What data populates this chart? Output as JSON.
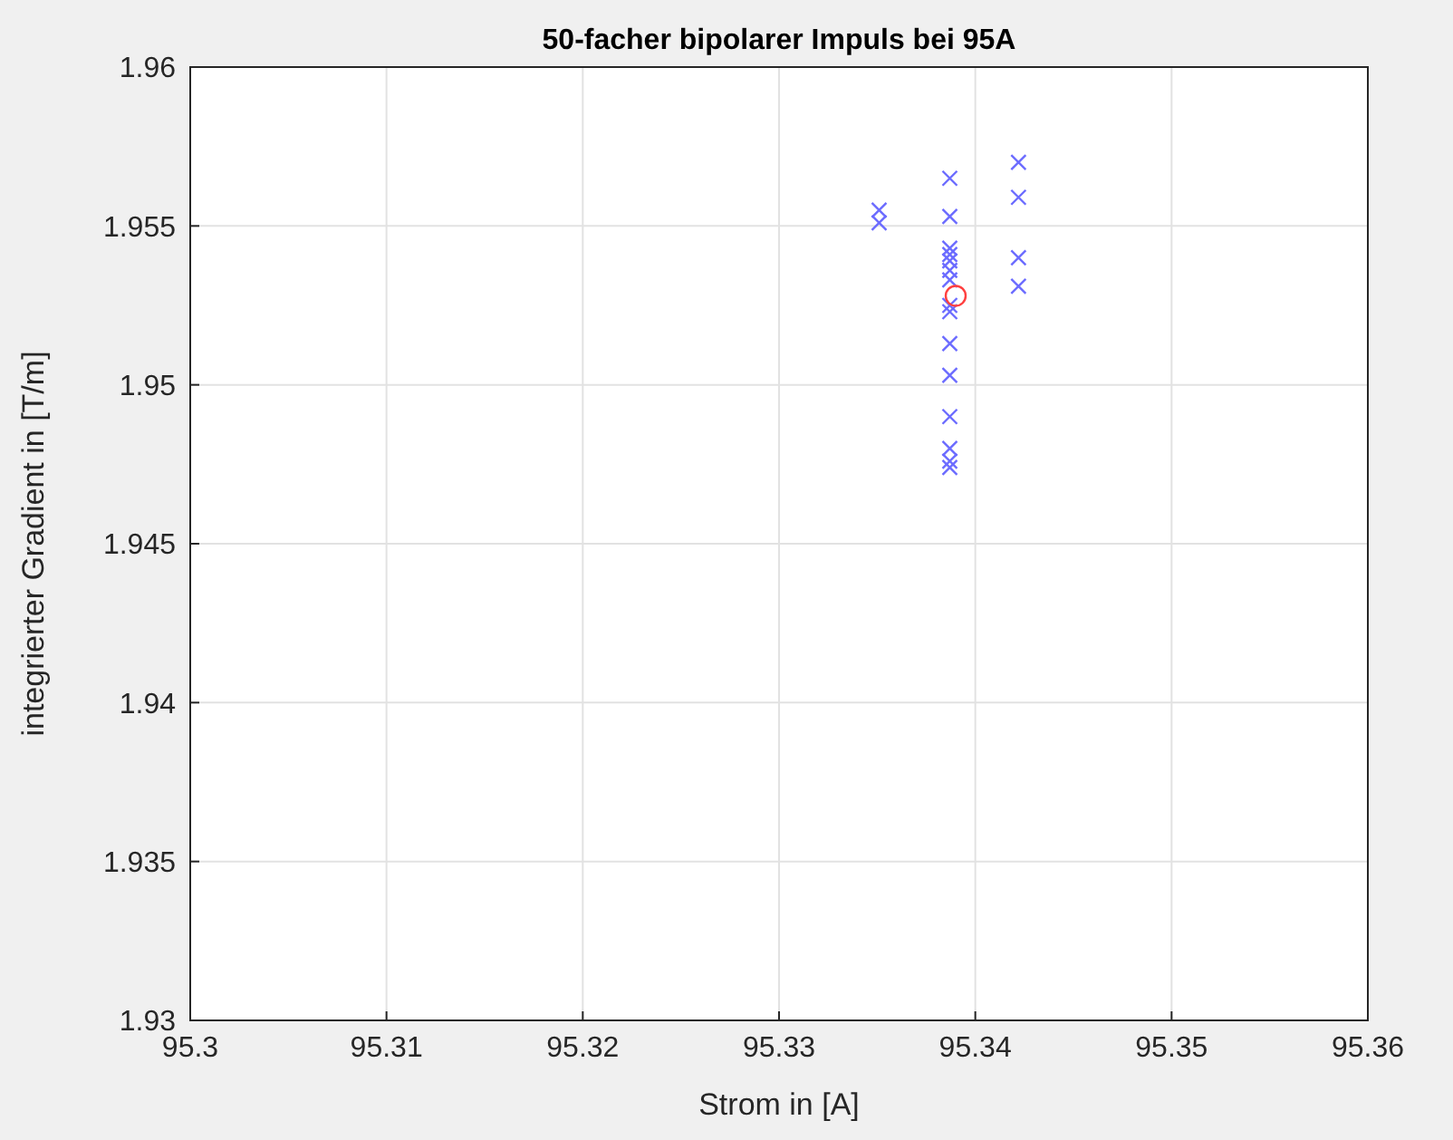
{
  "chart_data": {
    "type": "scatter",
    "title": "50-facher bipolarer Impuls bei 95A",
    "xlabel": "Strom in [A]",
    "ylabel": "integrierter Gradient in [T/m]",
    "xlim": [
      95.3,
      95.36
    ],
    "xticks": [
      95.3,
      95.31,
      95.32,
      95.33,
      95.34,
      95.35,
      95.36
    ],
    "ylim": [
      1.93,
      1.96
    ],
    "yticks": [
      1.93,
      1.935,
      1.94,
      1.945,
      1.95,
      1.955,
      1.96
    ],
    "grid": true,
    "series": [
      {
        "color": "#6b6bff",
        "marker": "cross",
        "x": [
          95.3351,
          95.3351,
          95.3387,
          95.3387,
          95.3387,
          95.3387,
          95.3387,
          95.3387,
          95.3387,
          95.3387,
          95.3387,
          95.3387,
          95.3387,
          95.3387,
          95.3387,
          95.3387,
          95.3387,
          95.3422,
          95.3422,
          95.3422,
          95.3422
        ],
        "values": [
          1.9555,
          1.9551,
          1.9565,
          1.9553,
          1.9543,
          1.9541,
          1.9539,
          1.9536,
          1.9533,
          1.9525,
          1.9523,
          1.9513,
          1.9503,
          1.949,
          1.948,
          1.9476,
          1.9474,
          1.957,
          1.9559,
          1.954,
          1.9531
        ]
      },
      {
        "color": "#ff4040",
        "marker": "circle",
        "x": [
          95.339
        ],
        "values": [
          1.9528
        ]
      }
    ]
  }
}
